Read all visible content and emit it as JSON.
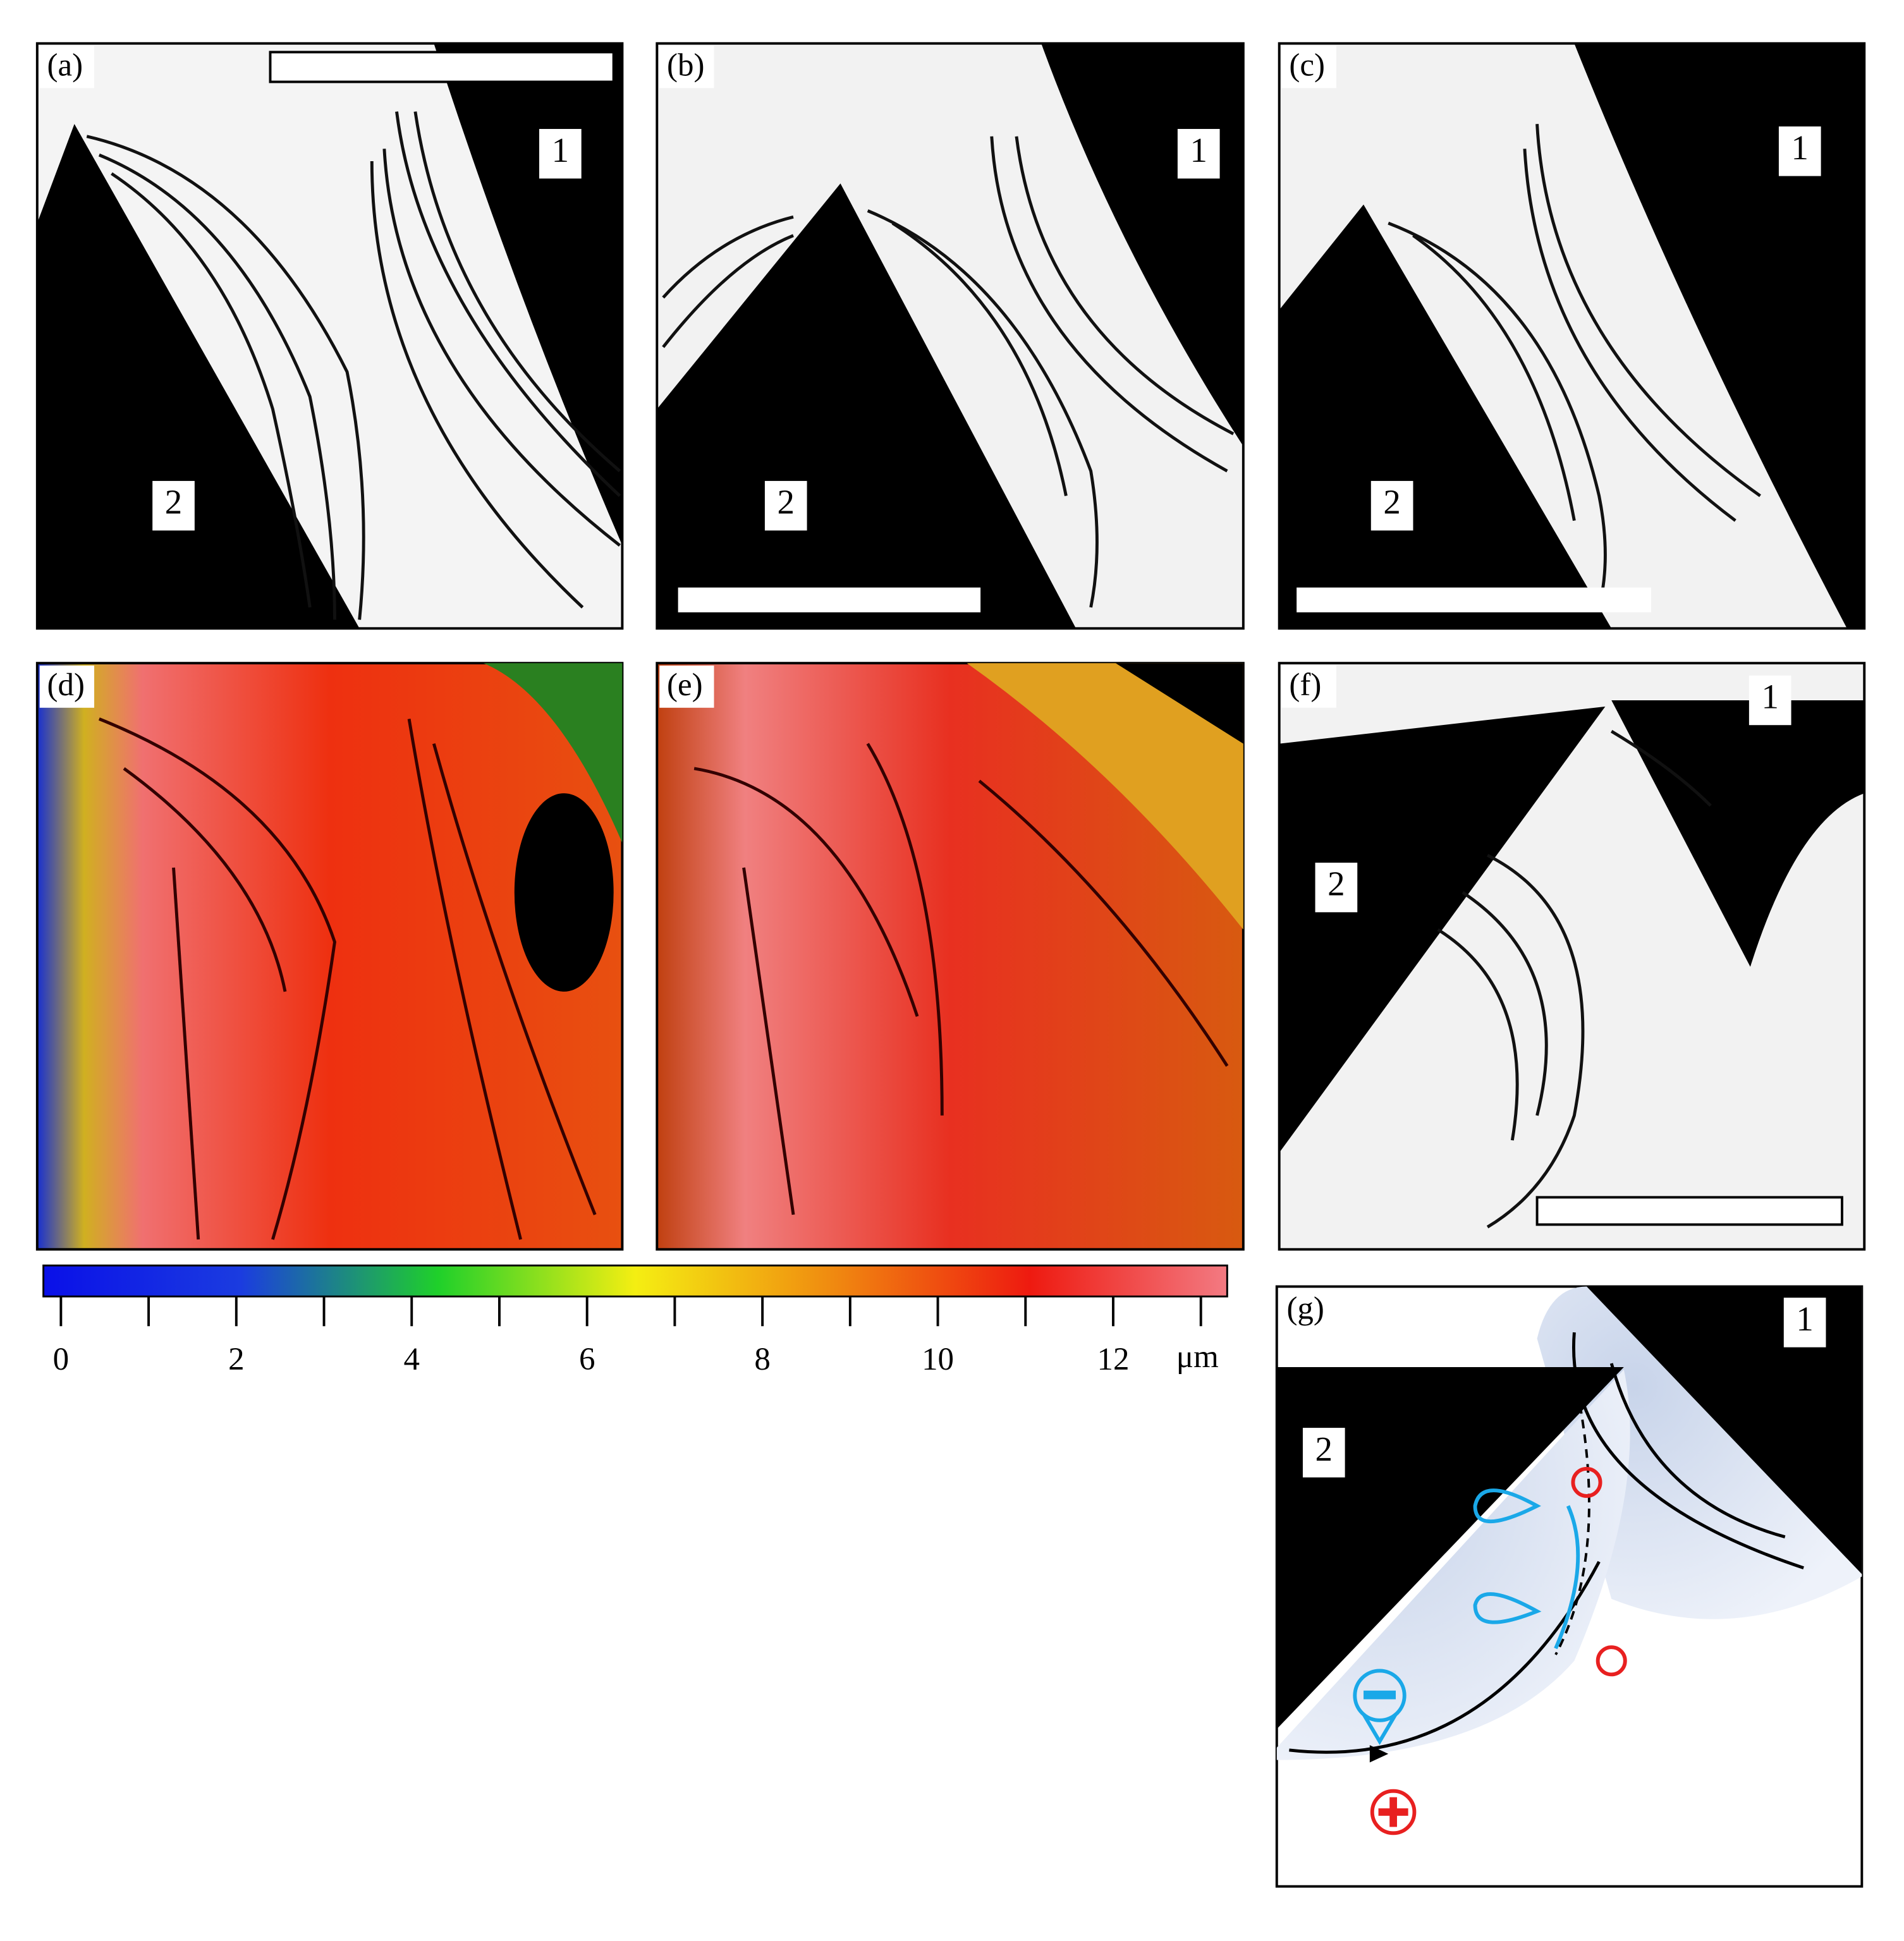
{
  "panels": [
    {
      "label": "(a)",
      "markers": [
        "1",
        "2"
      ]
    },
    {
      "label": "(b)",
      "markers": [
        "1",
        "2"
      ]
    },
    {
      "label": "(c)",
      "markers": [
        "1",
        "2"
      ]
    },
    {
      "label": "(d)",
      "markers": []
    },
    {
      "label": "(e)",
      "markers": []
    },
    {
      "label": "(f)",
      "markers": [
        "1",
        "2"
      ]
    },
    {
      "label": "(g)",
      "markers": [
        "1",
        "2"
      ]
    }
  ],
  "colorbar": {
    "unit": "μm",
    "lim": [
      -0.2,
      13.3
    ],
    "ticks": [
      0,
      2,
      4,
      6,
      8,
      10,
      12
    ],
    "minor_ticks": [
      1,
      3,
      5,
      7,
      9,
      11,
      13
    ],
    "colors": [
      "#0a10e8",
      "#1b3ce0",
      "#1fd02a",
      "#f4ee12",
      "#f08a10",
      "#ee1a10",
      "#f37a82"
    ]
  }
}
